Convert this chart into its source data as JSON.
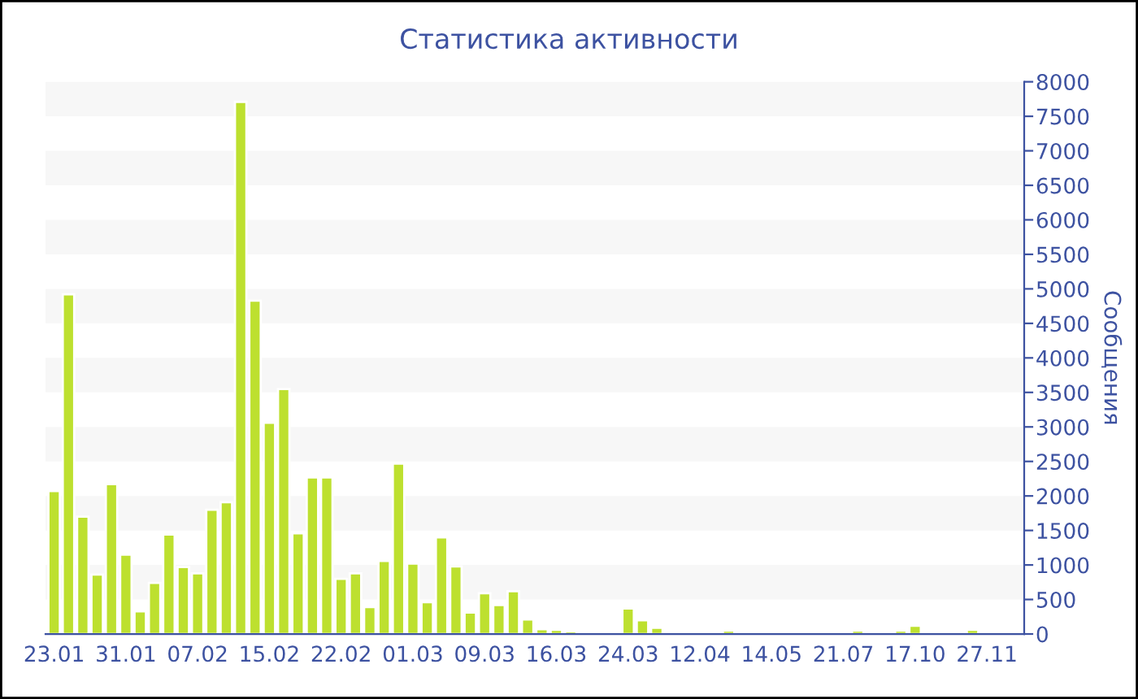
{
  "chart_data": {
    "type": "bar",
    "title": "Статистика активности",
    "ylabel": "Сообщения",
    "categories": [
      "23.01",
      null,
      null,
      null,
      null,
      "31.01",
      null,
      null,
      null,
      null,
      "07.02",
      null,
      null,
      null,
      null,
      "15.02",
      null,
      null,
      null,
      null,
      "22.02",
      null,
      null,
      null,
      null,
      "01.03",
      null,
      null,
      null,
      null,
      "09.03",
      null,
      null,
      null,
      null,
      "16.03",
      null,
      null,
      null,
      null,
      "24.03",
      null,
      null,
      null,
      null,
      "12.04",
      null,
      null,
      null,
      null,
      "14.05",
      null,
      null,
      null,
      null,
      "21.07",
      null,
      null,
      null,
      null,
      "17.10",
      null,
      null,
      null,
      null,
      "27.11",
      null,
      null
    ],
    "values": [
      2070,
      4920,
      1700,
      860,
      2170,
      1150,
      330,
      740,
      1440,
      970,
      880,
      1800,
      1910,
      7710,
      4830,
      3060,
      3550,
      1460,
      2270,
      2270,
      800,
      880,
      390,
      1060,
      2470,
      1020,
      460,
      1400,
      980,
      310,
      590,
      420,
      620,
      210,
      70,
      60,
      40,
      30,
      30,
      20,
      370,
      200,
      90,
      20,
      30,
      30,
      20,
      50,
      30,
      20,
      30,
      20,
      30,
      20,
      20,
      30,
      50,
      30,
      20,
      50,
      120,
      30,
      20,
      20,
      60,
      20,
      20,
      20
    ],
    "color": "#bde02f",
    "ylim": [
      0,
      8000
    ],
    "yticks": [
      0,
      500,
      1000,
      1500,
      2000,
      2500,
      3000,
      3500,
      4000,
      4500,
      5000,
      5500,
      6000,
      6500,
      7000,
      7500,
      8000
    ],
    "bands": [
      {
        "axis": "y",
        "from": 500,
        "to": 1000,
        "color": "#f7f7f7"
      },
      {
        "axis": "y",
        "from": 1500,
        "to": 2000,
        "color": "#f7f7f7"
      },
      {
        "axis": "y",
        "from": 2500,
        "to": 3000,
        "color": "#f7f7f7"
      },
      {
        "axis": "y",
        "from": 3500,
        "to": 4000,
        "color": "#f7f7f7"
      },
      {
        "axis": "y",
        "from": 4500,
        "to": 5000,
        "color": "#f7f7f7"
      },
      {
        "axis": "y",
        "from": 5500,
        "to": 6000,
        "color": "#f7f7f7"
      },
      {
        "axis": "y",
        "from": 6500,
        "to": 7000,
        "color": "#f7f7f7"
      },
      {
        "axis": "y",
        "from": 7500,
        "to": 8000,
        "color": "#f7f7f7"
      }
    ],
    "grid": false
  }
}
